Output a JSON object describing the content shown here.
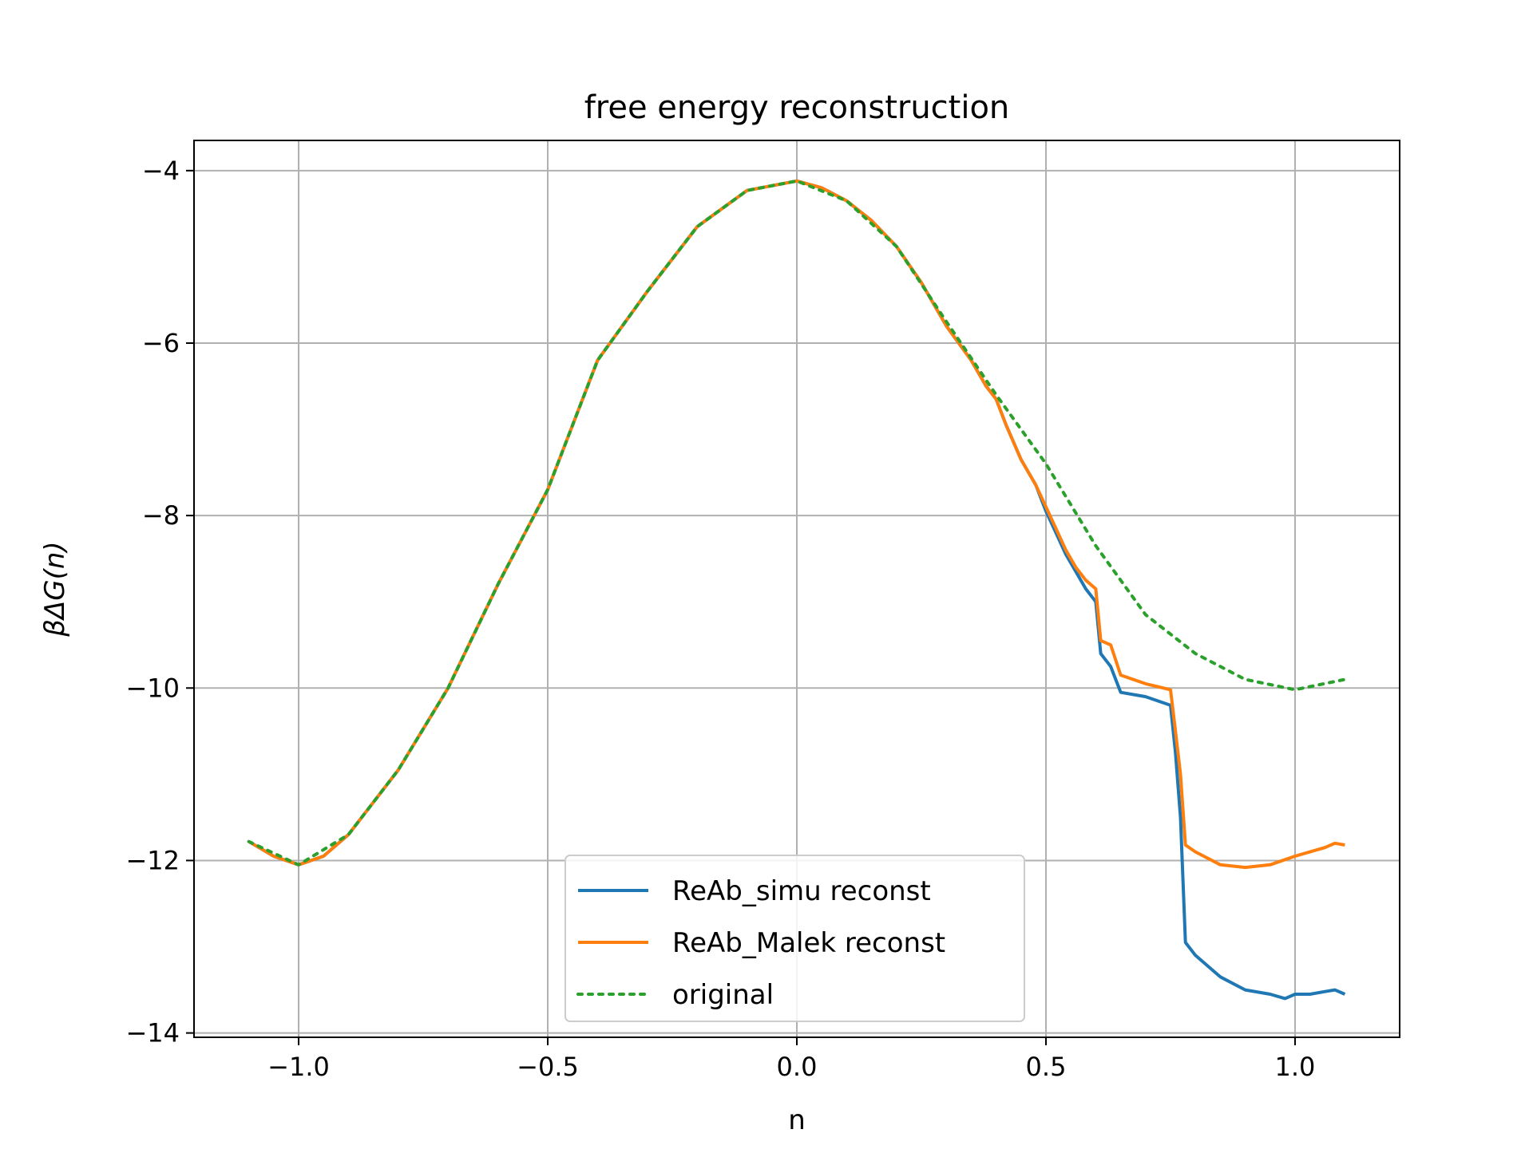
{
  "chart_data": {
    "type": "line",
    "title": "free energy reconstruction",
    "xlabel": "n",
    "ylabel": "βΔG(n)",
    "xlim": [
      -1.21,
      1.21
    ],
    "ylim": [
      -14.05,
      -3.65
    ],
    "xticks": [
      -1.0,
      -0.5,
      0.0,
      0.5,
      1.0
    ],
    "xtick_labels": [
      "−1.0",
      "−0.5",
      "0.0",
      "0.5",
      "1.0"
    ],
    "yticks": [
      -4,
      -6,
      -8,
      -10,
      -12,
      -14
    ],
    "ytick_labels": [
      "−4",
      "−6",
      "−8",
      "−10",
      "−12",
      "−14"
    ],
    "grid": true,
    "legend_position": "lower center",
    "series": [
      {
        "name": "ReAb_simu reconst",
        "color": "#1f77b4",
        "style": "solid",
        "x": [
          -1.1,
          -1.05,
          -1.0,
          -0.95,
          -0.9,
          -0.8,
          -0.7,
          -0.6,
          -0.5,
          -0.4,
          -0.3,
          -0.2,
          -0.1,
          0.0,
          0.05,
          0.1,
          0.15,
          0.2,
          0.25,
          0.3,
          0.35,
          0.38,
          0.4,
          0.42,
          0.45,
          0.48,
          0.5,
          0.52,
          0.54,
          0.56,
          0.58,
          0.6,
          0.61,
          0.63,
          0.65,
          0.7,
          0.75,
          0.76,
          0.77,
          0.78,
          0.8,
          0.85,
          0.9,
          0.95,
          0.98,
          1.0,
          1.03,
          1.06,
          1.08,
          1.1
        ],
        "y": [
          -11.78,
          -11.95,
          -12.05,
          -11.95,
          -11.7,
          -10.95,
          -10.0,
          -8.8,
          -7.7,
          -6.2,
          -5.4,
          -4.65,
          -4.23,
          -4.12,
          -4.2,
          -4.35,
          -4.58,
          -4.88,
          -5.3,
          -5.8,
          -6.2,
          -6.5,
          -6.65,
          -6.95,
          -7.35,
          -7.65,
          -7.95,
          -8.2,
          -8.45,
          -8.65,
          -8.85,
          -9.0,
          -9.6,
          -9.75,
          -10.05,
          -10.1,
          -10.2,
          -10.75,
          -11.5,
          -12.95,
          -13.1,
          -13.35,
          -13.5,
          -13.55,
          -13.6,
          -13.55,
          -13.55,
          -13.52,
          -13.5,
          -13.55
        ]
      },
      {
        "name": "ReAb_Malek reconst",
        "color": "#ff7f0e",
        "style": "solid",
        "x": [
          -1.1,
          -1.05,
          -1.0,
          -0.95,
          -0.9,
          -0.8,
          -0.7,
          -0.6,
          -0.5,
          -0.4,
          -0.3,
          -0.2,
          -0.1,
          0.0,
          0.05,
          0.1,
          0.15,
          0.2,
          0.25,
          0.3,
          0.35,
          0.38,
          0.4,
          0.42,
          0.45,
          0.48,
          0.5,
          0.52,
          0.54,
          0.56,
          0.58,
          0.6,
          0.61,
          0.63,
          0.65,
          0.7,
          0.75,
          0.76,
          0.77,
          0.78,
          0.8,
          0.85,
          0.9,
          0.95,
          1.0,
          1.03,
          1.06,
          1.08,
          1.1
        ],
        "y": [
          -11.78,
          -11.95,
          -12.05,
          -11.95,
          -11.7,
          -10.95,
          -10.0,
          -8.8,
          -7.7,
          -6.2,
          -5.4,
          -4.65,
          -4.23,
          -4.12,
          -4.2,
          -4.35,
          -4.58,
          -4.88,
          -5.3,
          -5.8,
          -6.2,
          -6.5,
          -6.65,
          -6.95,
          -7.35,
          -7.65,
          -7.9,
          -8.15,
          -8.4,
          -8.6,
          -8.75,
          -8.85,
          -9.45,
          -9.5,
          -9.85,
          -9.95,
          -10.02,
          -10.5,
          -11.0,
          -11.82,
          -11.9,
          -12.05,
          -12.08,
          -12.05,
          -11.95,
          -11.9,
          -11.85,
          -11.8,
          -11.82
        ]
      },
      {
        "name": "original",
        "color": "#2ca02c",
        "style": "dotted",
        "x": [
          -1.1,
          -1.0,
          -0.9,
          -0.8,
          -0.7,
          -0.6,
          -0.5,
          -0.4,
          -0.3,
          -0.2,
          -0.1,
          0.0,
          0.1,
          0.2,
          0.3,
          0.4,
          0.5,
          0.6,
          0.7,
          0.8,
          0.9,
          1.0,
          1.1
        ],
        "y": [
          -11.78,
          -12.05,
          -11.7,
          -10.95,
          -10.0,
          -8.8,
          -7.7,
          -6.2,
          -5.4,
          -4.65,
          -4.23,
          -4.12,
          -4.35,
          -4.88,
          -5.75,
          -6.6,
          -7.4,
          -8.35,
          -9.15,
          -9.6,
          -9.9,
          -10.02,
          -9.9
        ]
      }
    ]
  }
}
